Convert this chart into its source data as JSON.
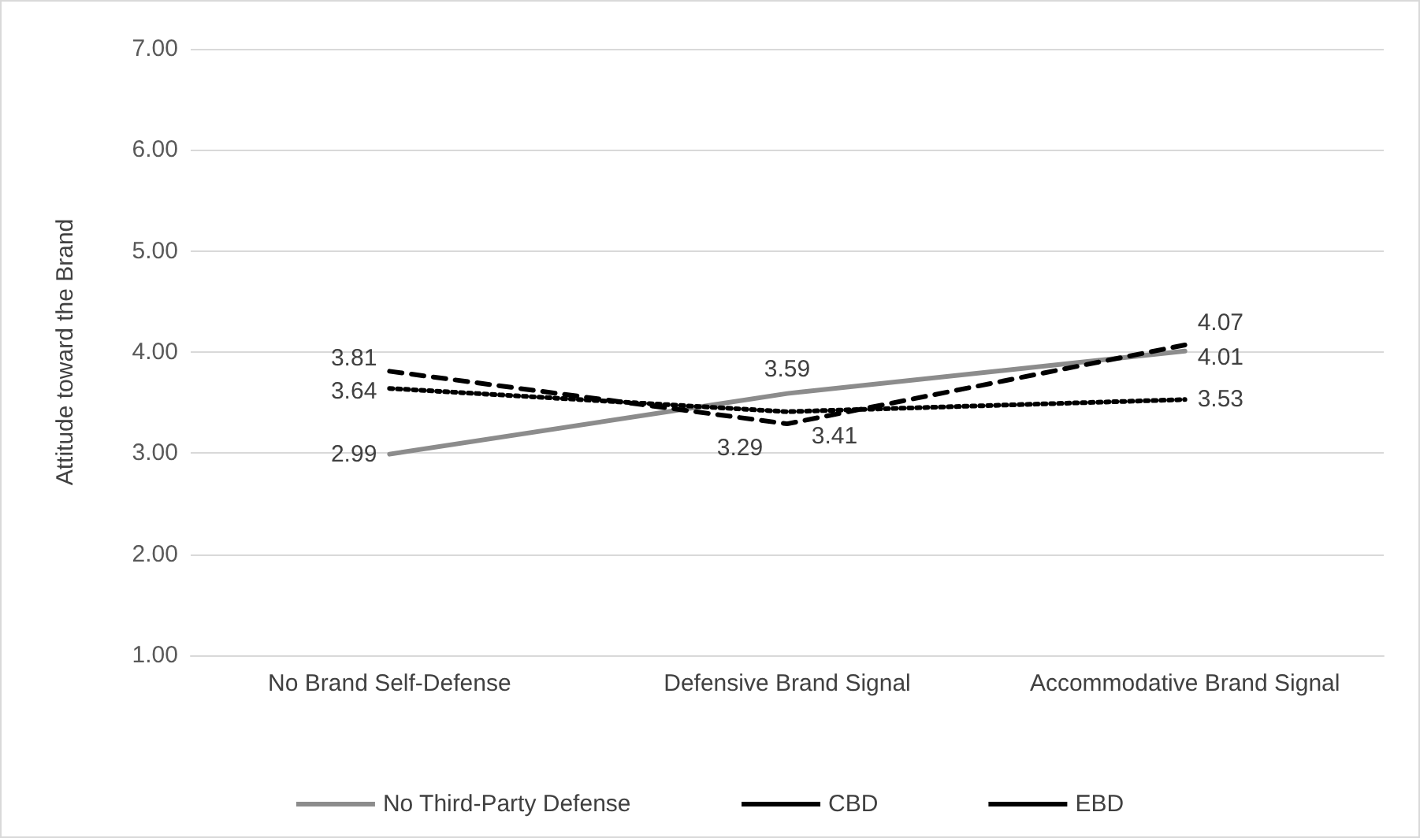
{
  "chart_data": {
    "type": "line",
    "ylabel": "Attitude toward the Brand",
    "categories": [
      "No Brand Self-Defense",
      "Defensive Brand Signal",
      "Accommodative Brand Signal"
    ],
    "series": [
      {
        "name": "No Third-Party Defense",
        "color": "#8c8c8c",
        "line_style": "solid",
        "values": [
          2.99,
          3.59,
          4.01
        ]
      },
      {
        "name": "CBD",
        "color": "#000000",
        "line_style": "dashed",
        "values": [
          3.81,
          3.29,
          4.07
        ]
      },
      {
        "name": "EBD",
        "color": "#000000",
        "line_style": "dotted",
        "values": [
          3.64,
          3.41,
          3.53
        ]
      }
    ],
    "ylim": [
      1,
      7
    ],
    "yticks": [
      {
        "value": 1,
        "label": "1.00"
      },
      {
        "value": 2,
        "label": "2.00"
      },
      {
        "value": 3,
        "label": "3.00"
      },
      {
        "value": 4,
        "label": "4.00"
      },
      {
        "value": 5,
        "label": "5.00"
      },
      {
        "value": 6,
        "label": "6.00"
      },
      {
        "value": 7,
        "label": "7.00"
      }
    ],
    "grid": "y",
    "legend": "bottom",
    "data_labels": true,
    "marker": "none"
  }
}
